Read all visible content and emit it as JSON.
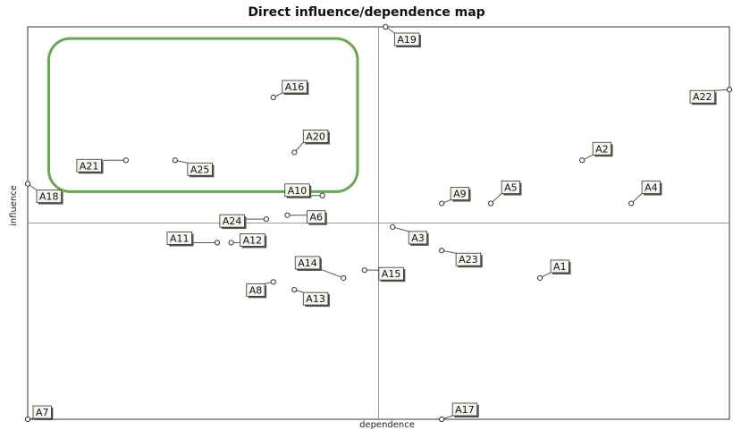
{
  "chart_data": {
    "type": "scatter",
    "title": "Direct influence/dependence map",
    "xlabel": "dependence",
    "ylabel": "influence",
    "xlim": [
      0,
      1
    ],
    "ylim": [
      0,
      1
    ],
    "quadrant_lines": {
      "x": 0.5,
      "y": 0.5
    },
    "grid": false,
    "legend": "none",
    "highlight": {
      "shape": "rounded-rectangle",
      "color": "#6aa84f",
      "x_range": [
        0.03,
        0.47
      ],
      "y_range": [
        0.58,
        0.97
      ]
    },
    "points": [
      {
        "label": "A19",
        "x": 0.51,
        "y": 1.0
      },
      {
        "label": "A16",
        "x": 0.35,
        "y": 0.82
      },
      {
        "label": "A22",
        "x": 1.0,
        "y": 0.84
      },
      {
        "label": "A20",
        "x": 0.38,
        "y": 0.68
      },
      {
        "label": "A2",
        "x": 0.79,
        "y": 0.66
      },
      {
        "label": "A21",
        "x": 0.14,
        "y": 0.66
      },
      {
        "label": "A25",
        "x": 0.21,
        "y": 0.66
      },
      {
        "label": "A18",
        "x": 0.0,
        "y": 0.6
      },
      {
        "label": "A10",
        "x": 0.42,
        "y": 0.57
      },
      {
        "label": "A9",
        "x": 0.59,
        "y": 0.55
      },
      {
        "label": "A5",
        "x": 0.66,
        "y": 0.55
      },
      {
        "label": "A4",
        "x": 0.86,
        "y": 0.55
      },
      {
        "label": "A24",
        "x": 0.34,
        "y": 0.51
      },
      {
        "label": "A6",
        "x": 0.37,
        "y": 0.52
      },
      {
        "label": "A3",
        "x": 0.52,
        "y": 0.49
      },
      {
        "label": "A11",
        "x": 0.27,
        "y": 0.45
      },
      {
        "label": "A12",
        "x": 0.29,
        "y": 0.45
      },
      {
        "label": "A23",
        "x": 0.59,
        "y": 0.43
      },
      {
        "label": "A14",
        "x": 0.45,
        "y": 0.36
      },
      {
        "label": "A15",
        "x": 0.48,
        "y": 0.38
      },
      {
        "label": "A1",
        "x": 0.73,
        "y": 0.36
      },
      {
        "label": "A8",
        "x": 0.35,
        "y": 0.35
      },
      {
        "label": "A13",
        "x": 0.38,
        "y": 0.33
      },
      {
        "label": "A7",
        "x": 0.0,
        "y": 0.0
      },
      {
        "label": "A17",
        "x": 0.59,
        "y": 0.0
      }
    ]
  }
}
